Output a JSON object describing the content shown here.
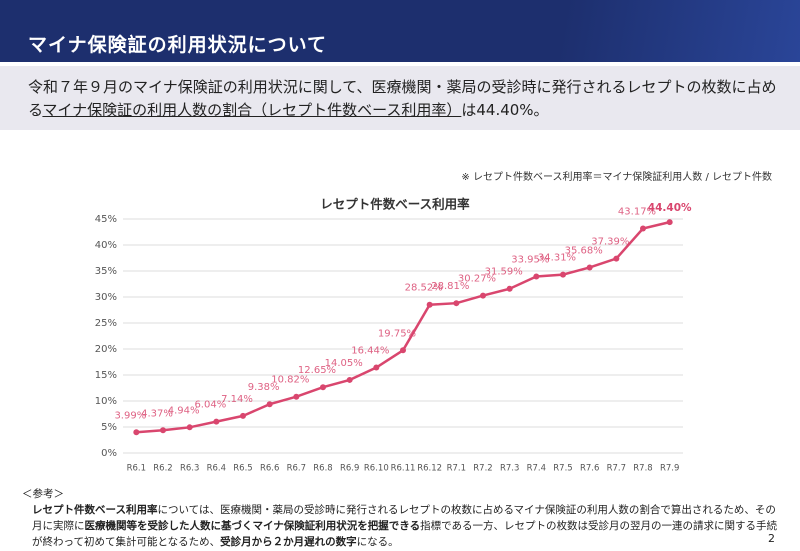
{
  "header": {
    "title": "マイナ保険証の利用状況について"
  },
  "summary": {
    "parts": [
      "令和７年９月のマイナ保険証の利用状況に関して、医療機関・薬局の受診時に発行されるレセプトの枚数に占める",
      "マイナ保険証の利用人数の割合（レセプト件数ベース利用率）",
      "は44.40%。"
    ]
  },
  "note": "※ レセプト件数ベース利用率＝マイナ保険証利用人数 / レセプト件数",
  "chart_data": {
    "type": "line",
    "title": "レセプト件数ベース利用率",
    "categories": [
      "R6.1",
      "R6.2",
      "R6.3",
      "R6.4",
      "R6.5",
      "R6.6",
      "R6.7",
      "R6.8",
      "R6.9",
      "R6.10",
      "R6.11",
      "R6.12",
      "R7.1",
      "R7.2",
      "R7.3",
      "R7.4",
      "R7.5",
      "R7.6",
      "R7.7",
      "R7.8",
      "R7.9"
    ],
    "series": [
      {
        "name": "レセプト件数ベース利用率",
        "color": "#d9466e",
        "values": [
          3.99,
          4.37,
          4.94,
          6.04,
          7.14,
          9.38,
          10.82,
          12.65,
          14.05,
          16.44,
          19.75,
          28.52,
          28.81,
          30.27,
          31.59,
          33.95,
          34.31,
          35.68,
          37.39,
          43.17,
          44.4
        ],
        "value_labels": [
          "3.99%",
          "4.37%",
          "4.94%",
          "6.04%",
          "7.14%",
          "9.38%",
          "10.82%",
          "12.65%",
          "14.05%",
          "16.44%",
          "19.75%",
          "28.52%",
          "28.81%",
          "30.27%",
          "31.59%",
          "33.95%",
          "34.31%",
          "35.68%",
          "37.39%",
          "43.17%",
          "44.40%"
        ]
      }
    ],
    "ylim": [
      0,
      45
    ],
    "yticks": [
      {
        "value": 0,
        "label": "0%"
      },
      {
        "value": 5,
        "label": "5%"
      },
      {
        "value": 10,
        "label": "10%"
      },
      {
        "value": 15,
        "label": "15%"
      },
      {
        "value": 20,
        "label": "20%"
      },
      {
        "value": 25,
        "label": "25%"
      },
      {
        "value": 30,
        "label": "30%"
      },
      {
        "value": 35,
        "label": "35%"
      },
      {
        "value": 40,
        "label": "40%"
      },
      {
        "value": 45,
        "label": "45%"
      }
    ],
    "grid": true
  },
  "reference": {
    "heading": "＜参考＞",
    "parts": [
      {
        "text": "レセプト件数ベース利用率",
        "bold": true
      },
      {
        "text": "については、医療機関・薬局の受診時に発行されるレセプトの枚数に占めるマイナ保険証の利用人数の割合で算出されるため、その月に実際に",
        "bold": false
      },
      {
        "text": "医療機関等を受診した人数に基づくマイナ保険証利用状況を把握できる",
        "bold": true
      },
      {
        "text": "指標である一方、レセプトの枚数は受診月の翌月の一連の請求に関する手続が終わって初めて集計可能となるため、",
        "bold": false
      },
      {
        "text": "受診月から２か月遅れの数字",
        "bold": true
      },
      {
        "text": "になる。",
        "bold": false
      }
    ]
  },
  "page_number": "2"
}
